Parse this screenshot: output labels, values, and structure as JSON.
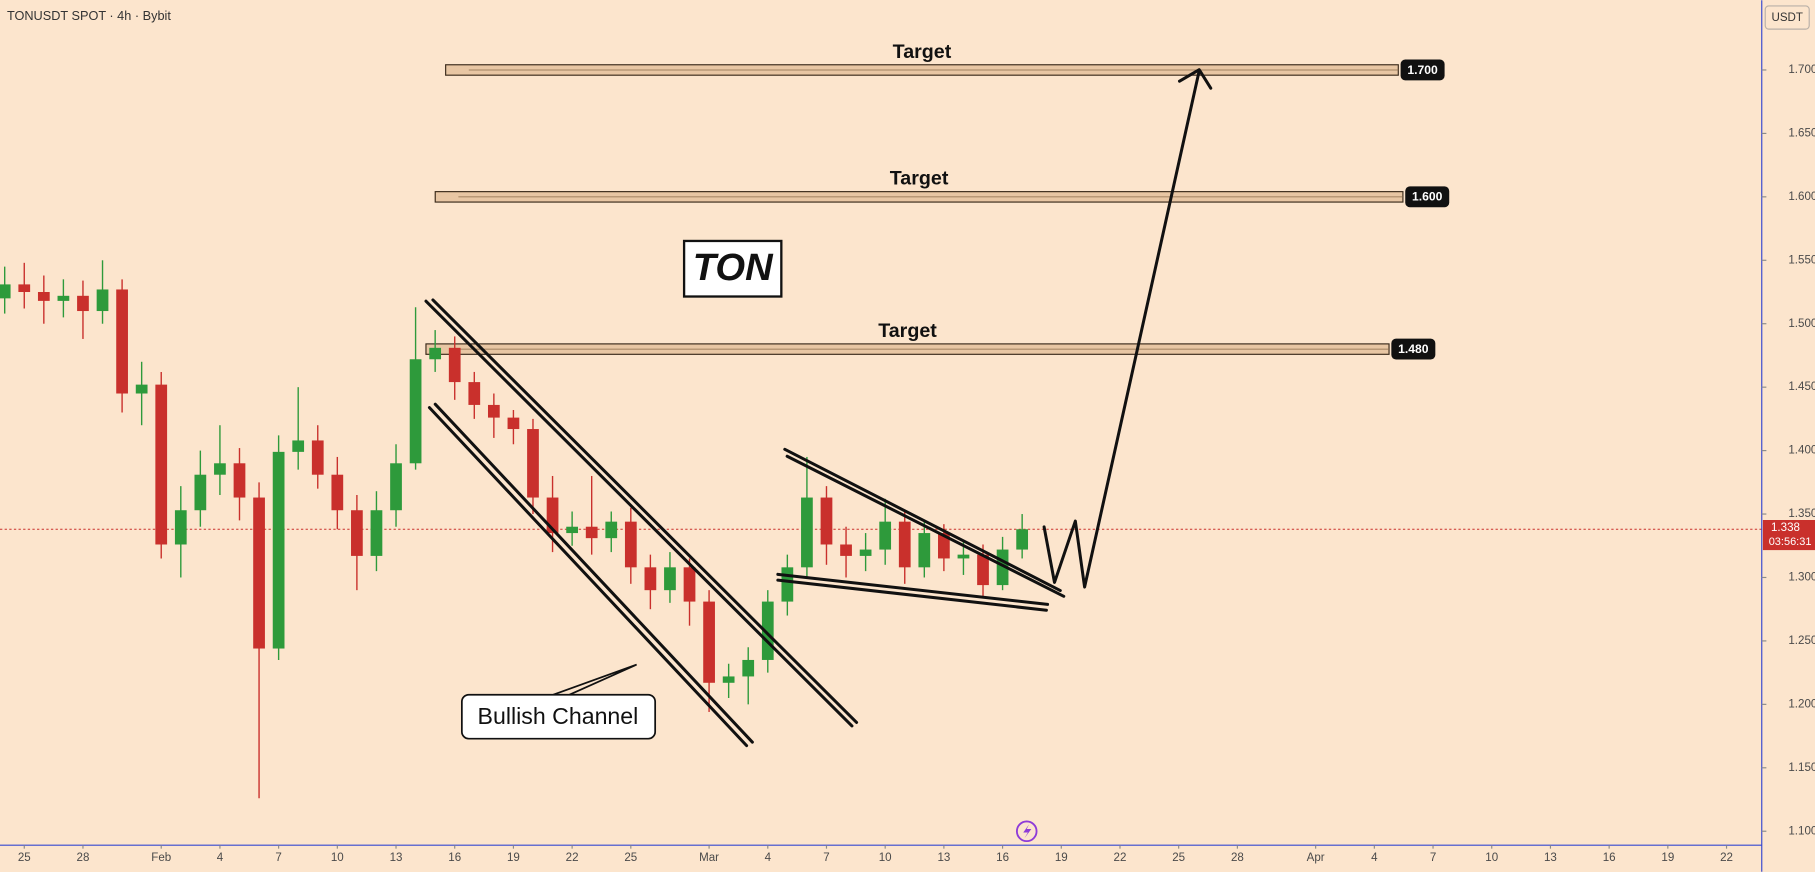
{
  "header": "TONUSDT SPOT · 4h · Bybit",
  "currency": "USDT",
  "chart_data": {
    "type": "candlestick",
    "title": "TON",
    "annotation": "Bullish Channel",
    "x": [
      -1,
      0,
      1,
      2,
      3,
      4,
      5,
      6,
      7,
      8,
      9,
      10,
      11,
      12,
      13,
      14,
      15,
      16,
      17,
      18,
      19,
      20,
      21,
      22,
      23,
      24,
      25,
      26,
      27,
      28,
      29,
      30,
      31,
      32,
      33,
      34,
      35,
      36,
      37,
      38,
      39,
      40,
      41,
      42,
      43,
      44,
      45,
      46,
      47,
      48,
      49,
      50,
      51
    ],
    "open": [
      1.52,
      1.531,
      1.525,
      1.518,
      1.522,
      1.51,
      1.527,
      1.445,
      1.452,
      1.326,
      1.353,
      1.381,
      1.39,
      1.363,
      1.244,
      1.399,
      1.408,
      1.381,
      1.353,
      1.317,
      1.353,
      1.39,
      1.472,
      1.481,
      1.454,
      1.436,
      1.426,
      1.417,
      1.363,
      1.335,
      1.34,
      1.331,
      1.344,
      1.308,
      1.29,
      1.308,
      1.281,
      1.217,
      1.222,
      1.235,
      1.281,
      1.308,
      1.363,
      1.326,
      1.317,
      1.322,
      1.344,
      1.308,
      1.335,
      1.315,
      1.318,
      1.294,
      1.322
    ],
    "high": [
      1.545,
      1.548,
      1.538,
      1.535,
      1.534,
      1.55,
      1.535,
      1.47,
      1.462,
      1.372,
      1.4,
      1.42,
      1.402,
      1.375,
      1.412,
      1.45,
      1.42,
      1.395,
      1.365,
      1.368,
      1.405,
      1.513,
      1.495,
      1.49,
      1.462,
      1.445,
      1.432,
      1.425,
      1.38,
      1.352,
      1.38,
      1.352,
      1.355,
      1.318,
      1.32,
      1.315,
      1.29,
      1.232,
      1.245,
      1.29,
      1.318,
      1.395,
      1.372,
      1.34,
      1.335,
      1.362,
      1.352,
      1.345,
      1.342,
      1.328,
      1.326,
      1.332,
      1.35
    ],
    "low": [
      1.508,
      1.512,
      1.5,
      1.505,
      1.488,
      1.5,
      1.43,
      1.42,
      1.315,
      1.3,
      1.34,
      1.365,
      1.345,
      1.126,
      1.235,
      1.385,
      1.37,
      1.338,
      1.29,
      1.305,
      1.34,
      1.385,
      1.462,
      1.44,
      1.425,
      1.41,
      1.405,
      1.35,
      1.32,
      1.325,
      1.318,
      1.32,
      1.295,
      1.275,
      1.28,
      1.262,
      1.194,
      1.205,
      1.2,
      1.225,
      1.27,
      1.3,
      1.31,
      1.3,
      1.305,
      1.31,
      1.295,
      1.3,
      1.305,
      1.302,
      1.285,
      1.29,
      1.315
    ],
    "close": [
      1.531,
      1.525,
      1.518,
      1.522,
      1.51,
      1.527,
      1.445,
      1.452,
      1.326,
      1.353,
      1.381,
      1.39,
      1.363,
      1.244,
      1.399,
      1.408,
      1.381,
      1.353,
      1.317,
      1.353,
      1.39,
      1.472,
      1.481,
      1.454,
      1.436,
      1.426,
      1.417,
      1.363,
      1.335,
      1.34,
      1.331,
      1.344,
      1.308,
      1.29,
      1.308,
      1.281,
      1.217,
      1.222,
      1.235,
      1.281,
      1.308,
      1.363,
      1.326,
      1.317,
      1.322,
      1.344,
      1.308,
      1.335,
      1.315,
      1.318,
      1.294,
      1.322,
      1.338
    ],
    "up_color": "#2e9a3b",
    "down_color": "#c9302c",
    "xlim": [
      -1.24,
      88.8
    ],
    "xticks": [
      {
        "value": 0,
        "label": "25"
      },
      {
        "value": 3,
        "label": "28"
      },
      {
        "value": 7,
        "label": "Feb"
      },
      {
        "value": 10,
        "label": "4"
      },
      {
        "value": 13,
        "label": "7"
      },
      {
        "value": 16,
        "label": "10"
      },
      {
        "value": 19,
        "label": "13"
      },
      {
        "value": 22,
        "label": "16"
      },
      {
        "value": 25,
        "label": "19"
      },
      {
        "value": 28,
        "label": "22"
      },
      {
        "value": 31,
        "label": "25"
      },
      {
        "value": 35,
        "label": "Mar"
      },
      {
        "value": 38,
        "label": "4"
      },
      {
        "value": 41,
        "label": "7"
      },
      {
        "value": 44,
        "label": "10"
      },
      {
        "value": 47,
        "label": "13"
      },
      {
        "value": 50,
        "label": "16"
      },
      {
        "value": 53,
        "label": "19"
      },
      {
        "value": 56,
        "label": "22"
      },
      {
        "value": 59,
        "label": "25"
      },
      {
        "value": 62,
        "label": "28"
      },
      {
        "value": 66,
        "label": "Apr"
      },
      {
        "value": 69,
        "label": "4"
      },
      {
        "value": 72,
        "label": "7"
      },
      {
        "value": 75,
        "label": "10"
      },
      {
        "value": 78,
        "label": "13"
      },
      {
        "value": 81,
        "label": "16"
      },
      {
        "value": 84,
        "label": "19"
      },
      {
        "value": 87,
        "label": "22"
      }
    ],
    "ylim": [
      1.089,
      1.755
    ],
    "yticks": [
      {
        "value": 1.1,
        "label": "1.100"
      },
      {
        "value": 1.15,
        "label": "1.150"
      },
      {
        "value": 1.2,
        "label": "1.200"
      },
      {
        "value": 1.25,
        "label": "1.250"
      },
      {
        "value": 1.3,
        "label": "1.300"
      },
      {
        "value": 1.35,
        "label": "1.350"
      },
      {
        "value": 1.4,
        "label": "1.400"
      },
      {
        "value": 1.45,
        "label": "1.450"
      },
      {
        "value": 1.5,
        "label": "1.500"
      },
      {
        "value": 1.55,
        "label": "1.550"
      },
      {
        "value": 1.6,
        "label": "1.600"
      },
      {
        "value": 1.65,
        "label": "1.650"
      },
      {
        "value": 1.7,
        "label": "1.700"
      }
    ],
    "last_price": 1.338,
    "countdown": "03:56:31",
    "targets": [
      {
        "label": "Target",
        "price": {
          "value": 1.7,
          "label": "1.700"
        }
      },
      {
        "label": "Target",
        "price": {
          "value": 1.6,
          "label": "1.600"
        }
      },
      {
        "label": "Target",
        "price": {
          "value": 1.48,
          "label": "1.480"
        }
      }
    ]
  }
}
